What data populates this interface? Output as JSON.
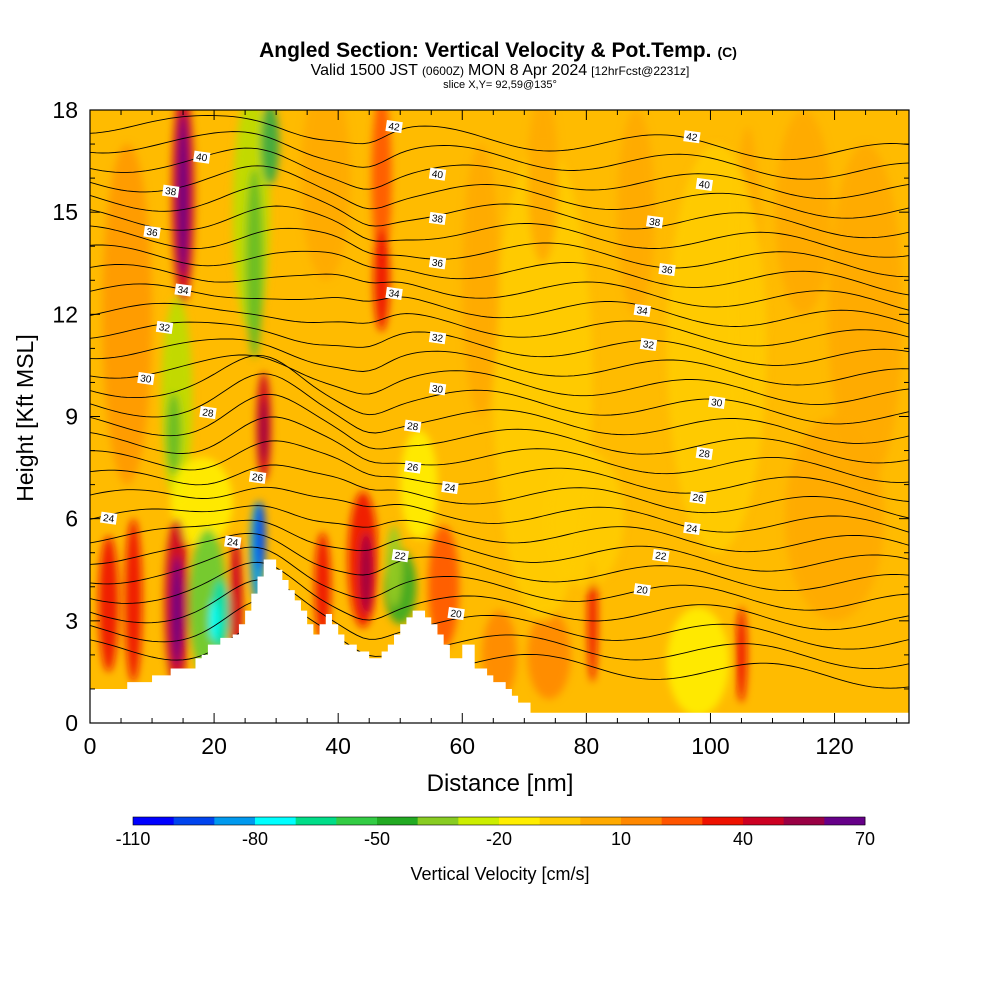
{
  "chart_data": {
    "type": "heatmap",
    "title": {
      "main": "Angled Section: Vertical Velocity & Pot.Temp.",
      "main_suffix": "(C)",
      "valid_a": "Valid 1500 JST",
      "valid_b": "(0600Z)",
      "valid_c": "MON 8 Apr 2024",
      "valid_d": "[12hrFcst@2231z]",
      "slice": "slice X,Y= 92,59@135°"
    },
    "xlabel": "Distance [nm]",
    "ylabel": "Height [Kft MSL]",
    "xlim": [
      0,
      132
    ],
    "ylim": [
      0,
      18
    ],
    "xticks": [
      0,
      20,
      40,
      60,
      80,
      100,
      120
    ],
    "yticks": [
      0,
      3,
      6,
      9,
      12,
      15,
      18
    ],
    "colorbar": {
      "label": "Vertical Velocity [cm/s]",
      "range": [
        -110,
        70
      ],
      "tick_labels": [
        "-110",
        "-80",
        "-50",
        "-20",
        "10",
        "40",
        "70"
      ],
      "colors": [
        "#0000ff",
        "#0044ee",
        "#0099ee",
        "#00ffff",
        "#00dd88",
        "#33cc44",
        "#22aa22",
        "#88cc22",
        "#ccee00",
        "#ffee00",
        "#ffcc00",
        "#ffaa00",
        "#ff8800",
        "#ff5500",
        "#ee1100",
        "#cc0022",
        "#990044",
        "#660088"
      ]
    },
    "theta_labels": [
      {
        "v": "42",
        "x": 49,
        "y": 17.5
      },
      {
        "v": "42",
        "x": 97,
        "y": 17.2
      },
      {
        "v": "40",
        "x": 18,
        "y": 16.6
      },
      {
        "v": "40",
        "x": 56,
        "y": 16.1
      },
      {
        "v": "40",
        "x": 99,
        "y": 15.8
      },
      {
        "v": "38",
        "x": 13,
        "y": 15.6
      },
      {
        "v": "38",
        "x": 56,
        "y": 14.8
      },
      {
        "v": "38",
        "x": 91,
        "y": 14.7
      },
      {
        "v": "36",
        "x": 10,
        "y": 14.4
      },
      {
        "v": "36",
        "x": 56,
        "y": 13.5
      },
      {
        "v": "36",
        "x": 93,
        "y": 13.3
      },
      {
        "v": "34",
        "x": 15,
        "y": 12.7
      },
      {
        "v": "34",
        "x": 49,
        "y": 12.6
      },
      {
        "v": "34",
        "x": 89,
        "y": 12.1
      },
      {
        "v": "32",
        "x": 12,
        "y": 11.6
      },
      {
        "v": "32",
        "x": 56,
        "y": 11.3
      },
      {
        "v": "32",
        "x": 90,
        "y": 11.1
      },
      {
        "v": "30",
        "x": 9,
        "y": 10.1
      },
      {
        "v": "30",
        "x": 56,
        "y": 9.8
      },
      {
        "v": "30",
        "x": 101,
        "y": 9.4
      },
      {
        "v": "28",
        "x": 19,
        "y": 9.1
      },
      {
        "v": "28",
        "x": 52,
        "y": 8.7
      },
      {
        "v": "28",
        "x": 99,
        "y": 7.9
      },
      {
        "v": "26",
        "x": 27,
        "y": 7.2
      },
      {
        "v": "26",
        "x": 52,
        "y": 7.5
      },
      {
        "v": "26",
        "x": 98,
        "y": 6.6
      },
      {
        "v": "24",
        "x": 3,
        "y": 6.0
      },
      {
        "v": "24",
        "x": 58,
        "y": 6.9
      },
      {
        "v": "24",
        "x": 97,
        "y": 5.7
      },
      {
        "v": "24",
        "x": 23,
        "y": 5.3
      },
      {
        "v": "22",
        "x": 50,
        "y": 4.9
      },
      {
        "v": "22",
        "x": 92,
        "y": 4.9
      },
      {
        "v": "20",
        "x": 89,
        "y": 3.9
      },
      {
        "v": "20",
        "x": 59,
        "y": 3.2
      }
    ],
    "terrain": {
      "x": [
        0,
        5,
        6,
        9,
        10,
        12,
        13,
        16,
        17,
        18,
        19,
        20,
        21,
        23,
        24,
        25,
        26,
        27,
        28,
        29,
        30,
        31,
        32,
        33,
        34,
        35,
        36,
        37,
        38,
        39,
        40,
        41,
        42,
        43,
        44,
        45,
        46,
        47,
        48,
        49,
        50,
        51,
        52,
        53,
        54,
        55,
        56,
        57,
        58,
        59,
        60,
        61,
        62,
        63,
        64,
        65,
        66,
        67,
        68,
        69,
        70,
        71,
        72,
        80,
        81,
        82,
        132
      ],
      "y": [
        1.0,
        1.0,
        1.2,
        1.2,
        1.4,
        1.4,
        1.6,
        1.6,
        1.9,
        2.0,
        2.3,
        2.3,
        2.5,
        2.6,
        2.9,
        3.3,
        3.8,
        4.3,
        4.8,
        4.8,
        4.5,
        4.2,
        3.9,
        3.6,
        3.3,
        2.9,
        2.6,
        2.9,
        3.2,
        2.9,
        2.6,
        2.3,
        2.3,
        2.1,
        2.1,
        1.9,
        1.9,
        2.1,
        2.3,
        2.6,
        2.9,
        3.1,
        3.3,
        3.3,
        3.1,
        2.9,
        2.6,
        2.3,
        1.9,
        1.9,
        2.3,
        2.3,
        1.6,
        1.6,
        1.4,
        1.2,
        1.2,
        1.0,
        0.8,
        0.6,
        0.6,
        0.3,
        0.3,
        0.3,
        0.3,
        0.3,
        0.3
      ]
    }
  }
}
